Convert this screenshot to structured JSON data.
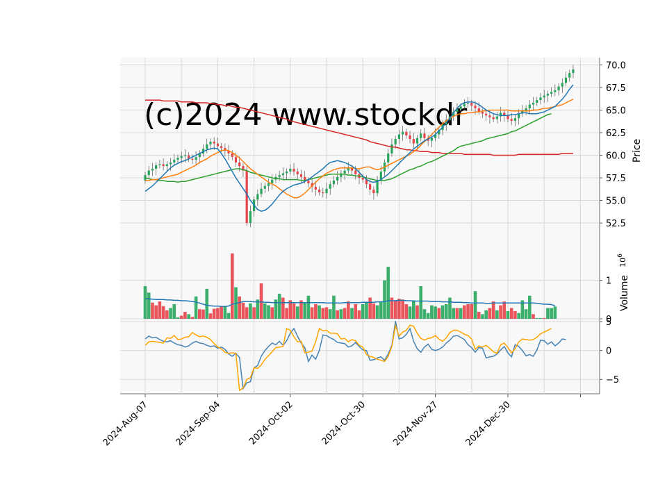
{
  "chart_data": {
    "type": "candlestick",
    "watermark": "(c)2024 www.stockdr",
    "x_tick_labels": [
      "2024-Aug-07",
      "2024-Sep-04",
      "2024-Oct-02",
      "2024-Oct-30",
      "2024-Nov-27",
      "2024-Dec-30"
    ],
    "x_tick_index": [
      0,
      20,
      40,
      60,
      80,
      100
    ],
    "price_panel": {
      "ylabel": "Price",
      "ylim": [
        50.2,
        70.8
      ],
      "yticks": [
        "52.5",
        "55.0",
        "57.5",
        "60.0",
        "62.5",
        "65.0",
        "67.5",
        "70.0"
      ],
      "ytick_values": [
        52.5,
        55.0,
        57.5,
        60.0,
        62.5,
        65.0,
        67.5,
        70.0
      ],
      "closes": [
        57.8,
        58.3,
        58.5,
        58.9,
        59.0,
        58.8,
        59.0,
        59.2,
        59.5,
        59.7,
        59.9,
        60.0,
        59.6,
        59.5,
        59.8,
        60.2,
        60.7,
        61.2,
        61.5,
        61.3,
        61.0,
        60.8,
        60.5,
        60.2,
        59.8,
        59.2,
        58.8,
        58.3,
        52.5,
        53.8,
        55.1,
        55.7,
        56.3,
        56.6,
        56.9,
        57.3,
        57.6,
        57.8,
        58.0,
        58.2,
        58.5,
        58.2,
        57.9,
        57.6,
        57.2,
        56.9,
        56.5,
        56.2,
        55.9,
        55.8,
        56.3,
        56.8,
        57.2,
        57.6,
        58.0,
        58.3,
        58.6,
        58.3,
        57.9,
        57.5,
        57.3,
        56.8,
        56.2,
        55.8,
        57.2,
        58.2,
        59.2,
        60.2,
        61.2,
        61.8,
        62.3,
        62.6,
        62.2,
        61.8,
        61.3,
        61.9,
        62.4,
        61.9,
        61.6,
        61.9,
        62.3,
        62.8,
        63.4,
        63.9,
        64.3,
        64.8,
        65.1,
        65.4,
        65.7,
        65.8,
        65.5,
        65.2,
        64.8,
        64.6,
        64.4,
        64.2,
        64.0,
        64.3,
        64.7,
        64.4,
        64.0,
        63.8,
        64.1,
        64.6,
        64.9,
        65.2,
        65.6,
        65.8,
        66.1,
        66.4,
        66.6,
        66.8,
        67.0,
        67.2,
        67.6,
        68.0,
        68.6,
        69.1,
        69.5
      ],
      "sma_20": [
        56.0,
        56.3,
        56.6,
        57.0,
        57.4,
        57.8,
        58.2,
        58.6,
        58.9,
        59.1,
        59.3,
        59.4,
        59.6,
        59.8,
        60.0,
        60.2,
        60.4,
        60.6,
        60.7,
        60.8,
        60.7,
        60.2,
        59.6,
        58.9,
        58.2,
        57.5,
        56.9,
        56.3,
        55.7,
        55.0,
        54.5,
        54.0,
        53.8,
        53.9,
        54.2,
        54.6,
        55.1,
        55.6,
        56.0,
        56.3,
        56.5,
        56.7,
        56.8,
        56.9,
        57.1,
        57.3,
        57.6,
        57.9,
        58.2,
        58.5,
        58.9,
        59.2,
        59.3,
        59.4,
        59.3,
        59.2,
        59.0,
        58.8,
        58.5,
        58.1,
        57.7,
        57.3,
        57.1,
        57.0,
        57.1,
        57.3,
        57.6,
        57.9,
        58.3,
        58.7,
        59.1,
        59.5,
        59.9,
        60.3,
        60.7,
        61.0,
        61.3,
        61.6,
        61.8,
        62.0,
        62.3,
        62.7,
        63.1,
        63.6,
        64.1,
        64.7,
        65.2,
        65.6,
        65.8,
        65.9,
        65.9,
        65.8,
        65.6,
        65.3,
        65.0,
        64.8,
        64.6,
        64.5,
        64.4,
        64.4,
        64.4,
        64.5,
        64.5,
        64.6,
        64.7,
        64.7,
        64.6,
        64.6,
        64.6,
        64.7,
        64.8,
        65.0,
        65.2,
        65.4,
        65.8,
        66.2,
        66.7,
        67.3,
        67.8
      ],
      "sma_50": [
        57.2,
        57.2,
        57.3,
        57.3,
        57.4,
        57.5,
        57.6,
        57.7,
        57.8,
        57.9,
        58.1,
        58.3,
        58.5,
        58.7,
        58.9,
        59.2,
        59.4,
        59.6,
        59.9,
        60.1,
        60.3,
        60.5,
        60.6,
        60.5,
        60.3,
        60.0,
        59.7,
        59.3,
        58.9,
        58.5,
        58.2,
        57.9,
        57.6,
        57.3,
        57.0,
        56.8,
        56.6,
        56.3,
        56.0,
        55.7,
        55.5,
        55.3,
        55.3,
        55.5,
        55.8,
        56.2,
        56.6,
        57.0,
        57.4,
        57.7,
        58.0,
        58.2,
        58.4,
        58.5,
        58.6,
        58.6,
        58.6,
        58.6,
        58.5,
        58.5,
        58.6,
        58.7,
        58.7,
        58.5,
        58.4,
        58.5,
        58.7,
        58.9,
        59.1,
        59.3,
        59.5,
        59.7,
        59.9,
        60.1,
        60.4,
        60.7,
        61.1,
        61.5,
        61.9,
        62.3,
        62.7,
        63.1,
        63.5,
        63.8,
        64.1,
        64.3,
        64.5,
        64.6,
        64.6,
        64.7,
        64.7,
        64.8,
        64.8,
        64.9,
        64.9,
        65.0,
        65.0,
        65.0,
        65.0,
        65.0,
        65.0,
        64.9,
        64.9,
        64.9,
        64.9,
        64.9,
        64.9,
        65.0,
        65.0,
        65.1,
        65.2,
        65.2,
        65.3,
        65.4,
        65.5,
        65.6,
        65.8,
        66.0,
        66.2
      ],
      "sma_100": [
        57.5,
        57.4,
        57.3,
        57.3,
        57.2,
        57.2,
        57.1,
        57.1,
        57.1,
        57.0,
        57.1,
        57.1,
        57.2,
        57.3,
        57.4,
        57.5,
        57.6,
        57.7,
        57.8,
        57.9,
        58.0,
        58.1,
        58.2,
        58.3,
        58.4,
        58.5,
        58.5,
        58.4,
        58.3,
        58.1,
        58.0,
        57.9,
        57.8,
        57.7,
        57.6,
        57.5,
        57.4,
        57.4,
        57.3,
        57.3,
        57.3,
        57.3,
        57.3,
        57.2,
        57.2,
        57.3,
        57.4,
        57.5,
        57.6,
        57.7,
        57.8,
        57.9,
        57.9,
        57.9,
        57.9,
        57.9,
        57.8,
        57.8,
        57.7,
        57.7,
        57.6,
        57.5,
        57.4,
        57.3,
        57.2,
        57.2,
        57.2,
        57.3,
        57.4,
        57.6,
        57.8,
        58.0,
        58.2,
        58.4,
        58.5,
        58.7,
        58.8,
        59.0,
        59.2,
        59.3,
        59.5,
        59.7,
        59.9,
        60.1,
        60.3,
        60.5,
        60.8,
        61.0,
        61.1,
        61.2,
        61.3,
        61.4,
        61.5,
        61.6,
        61.8,
        61.9,
        62.0,
        62.1,
        62.2,
        62.3,
        62.4,
        62.6,
        62.7,
        62.9,
        63.1,
        63.3,
        63.5,
        63.7,
        63.9,
        64.1,
        64.3,
        64.5,
        64.6
      ],
      "sma_200": [
        66.1,
        66.1,
        66.1,
        66.1,
        66.1,
        66.0,
        66.0,
        66.0,
        66.0,
        66.0,
        65.9,
        65.9,
        65.9,
        65.9,
        65.8,
        65.8,
        65.8,
        65.8,
        65.7,
        65.7,
        65.6,
        65.6,
        65.5,
        65.5,
        65.4,
        65.3,
        65.3,
        65.2,
        65.1,
        65.0,
        64.9,
        64.8,
        64.7,
        64.6,
        64.5,
        64.4,
        64.3,
        64.2,
        64.1,
        64.0,
        63.8,
        63.7,
        63.6,
        63.5,
        63.4,
        63.3,
        63.2,
        63.1,
        63.0,
        62.9,
        62.8,
        62.7,
        62.6,
        62.5,
        62.4,
        62.3,
        62.2,
        62.1,
        62.0,
        61.9,
        61.8,
        61.7,
        61.5,
        61.4,
        61.3,
        61.2,
        61.1,
        61.0,
        60.9,
        60.9,
        60.8,
        60.7,
        60.6,
        60.6,
        60.5,
        60.5,
        60.4,
        60.4,
        60.4,
        60.3,
        60.3,
        60.3,
        60.2,
        60.2,
        60.2,
        60.2,
        60.2,
        60.2,
        60.1,
        60.1,
        60.1,
        60.1,
        60.1,
        60.1,
        60.1,
        60.1,
        60.0,
        60.0,
        60.0,
        60.0,
        60.0,
        60.0,
        60.0,
        60.1,
        60.1,
        60.1,
        60.1,
        60.1,
        60.1,
        60.1,
        60.1,
        60.1,
        60.1,
        60.1,
        60.1,
        60.2,
        60.2,
        60.2,
        60.2
      ]
    },
    "volume_panel": {
      "ylabel": "Volume  10^6",
      "ylabel_text": "Volume",
      "ylabel_exponent": "6",
      "ylim": [
        0,
        1.95
      ],
      "yticks": [
        "0",
        "1"
      ],
      "ytick_values": [
        0,
        1
      ],
      "values": [
        0.85,
        0.68,
        0.42,
        0.35,
        0.45,
        0.33,
        0.22,
        0.28,
        0.38,
        0.04,
        0.08,
        0.18,
        0.12,
        0.05,
        0.58,
        0.25,
        0.24,
        0.78,
        0.14,
        0.26,
        0.28,
        0.32,
        0.33,
        0.15,
        1.7,
        0.82,
        0.58,
        0.42,
        0.3,
        0.4,
        0.3,
        0.5,
        0.92,
        0.4,
        0.35,
        0.3,
        0.5,
        0.65,
        0.55,
        0.28,
        0.48,
        0.4,
        0.32,
        0.48,
        0.42,
        0.6,
        0.3,
        0.38,
        0.35,
        0.28,
        0.3,
        0.25,
        0.6,
        0.22,
        0.25,
        0.28,
        0.45,
        0.28,
        0.38,
        0.22,
        0.38,
        0.42,
        0.55,
        0.4,
        0.35,
        0.45,
        1.0,
        1.35,
        0.55,
        0.48,
        0.52,
        0.5,
        0.38,
        0.32,
        0.48,
        0.35,
        0.85,
        0.25,
        0.15,
        0.35,
        0.32,
        0.28,
        0.35,
        0.38,
        0.55,
        0.28,
        0.28,
        0.28,
        0.35,
        0.38,
        0.38,
        0.72,
        0.18,
        0.12,
        0.22,
        0.28,
        0.45,
        0.22,
        0.35,
        0.45,
        0.2,
        0.28,
        0.2,
        0.15,
        0.48,
        0.25,
        0.6,
        0.12,
        0.02,
        0.02,
        0.02,
        0.28,
        0.28,
        0.32
      ],
      "up_flags": [
        1,
        1,
        0,
        0,
        0,
        0,
        0,
        1,
        1,
        1,
        0,
        0,
        1,
        0,
        1,
        0,
        0,
        1,
        0,
        0,
        0,
        0,
        1,
        1,
        0,
        1,
        0,
        0,
        0,
        1,
        0,
        1,
        0,
        1,
        1,
        0,
        1,
        1,
        0,
        0,
        0,
        0,
        1,
        0,
        1,
        1,
        0,
        0,
        1,
        0,
        0,
        1,
        1,
        0,
        1,
        0,
        0,
        1,
        0,
        0,
        1,
        1,
        0,
        0,
        1,
        1,
        1,
        1,
        0,
        0,
        0,
        0,
        0,
        1,
        1,
        0,
        1,
        1,
        1,
        1,
        1,
        0,
        1,
        1,
        1,
        1,
        0,
        1,
        0,
        0,
        0,
        1,
        0,
        1,
        1,
        0,
        0,
        1,
        0,
        0,
        1,
        0,
        0,
        1,
        1,
        1,
        1,
        0,
        1,
        1,
        0,
        1,
        1,
        1
      ],
      "avg": [
        0.52,
        0.52,
        0.51,
        0.5,
        0.5,
        0.5,
        0.49,
        0.49,
        0.48,
        0.48,
        0.47,
        0.47,
        0.46,
        0.45,
        0.43,
        0.41,
        0.38,
        0.35,
        0.34,
        0.33,
        0.33,
        0.32,
        0.32,
        0.33,
        0.38,
        0.4,
        0.42,
        0.45,
        0.45,
        0.45,
        0.44,
        0.44,
        0.44,
        0.43,
        0.43,
        0.42,
        0.42,
        0.42,
        0.42,
        0.42,
        0.42,
        0.42,
        0.42,
        0.42,
        0.42,
        0.42,
        0.42,
        0.42,
        0.42,
        0.42,
        0.41,
        0.41,
        0.41,
        0.41,
        0.41,
        0.42,
        0.42,
        0.42,
        0.42,
        0.42,
        0.43,
        0.43,
        0.43,
        0.43,
        0.44,
        0.44,
        0.45,
        0.47,
        0.47,
        0.47,
        0.48,
        0.48,
        0.47,
        0.47,
        0.46,
        0.46,
        0.46,
        0.46,
        0.46,
        0.45,
        0.45,
        0.45,
        0.44,
        0.44,
        0.44,
        0.43,
        0.43,
        0.43,
        0.42,
        0.42,
        0.41,
        0.41,
        0.41,
        0.41,
        0.4,
        0.4,
        0.41,
        0.41,
        0.41,
        0.41,
        0.41,
        0.41,
        0.41,
        0.41,
        0.41,
        0.41,
        0.41,
        0.41,
        0.4,
        0.39,
        0.38,
        0.38,
        0.37,
        0.34
      ],
      "colors": {
        "up": "#26a65b",
        "down": "#e8424a",
        "avg": "#1f77b4"
      }
    },
    "indicator_panel": {
      "ylim": [
        -7.5,
        5.5
      ],
      "yticks": [
        "−5",
        "0",
        "5"
      ],
      "ytick_values": [
        -5,
        0,
        5
      ],
      "series": [
        {
          "color": "#4682b4",
          "values": [
            2.0,
            2.5,
            2.2,
            2.3,
            1.9,
            1.6,
            1.5,
            1.7,
            1.3,
            1.0,
            0.9,
            0.6,
            0.8,
            1.3,
            1.6,
            1.3,
            1.2,
            0.9,
            0.7,
            0.8,
            0.4,
            0.6,
            0.2,
            -0.6,
            -1.0,
            -0.5,
            -1.2,
            -6.6,
            -5.6,
            -5.4,
            -3.0,
            -2.6,
            -1.0,
            0.0,
            0.7,
            1.3,
            1.0,
            1.6,
            0.9,
            1.7,
            3.0,
            3.8,
            2.5,
            1.3,
            0.5,
            -1.9,
            -0.8,
            -1.5,
            0.0,
            2.7,
            2.6,
            2.2,
            1.9,
            1.4,
            1.3,
            1.2,
            0.6,
            0.8,
            1.4,
            0.7,
            0.1,
            0.0,
            -1.7,
            -1.6,
            -1.3,
            -1.1,
            -1.7,
            -0.6,
            0.9,
            5.1,
            2.0,
            2.2,
            2.8,
            3.8,
            1.6,
            0.3,
            -0.3,
            0.6,
            1.1,
            0.2,
            0.0,
            0.2,
            0.6,
            1.3,
            1.8,
            2.5,
            2.6,
            2.3,
            1.9,
            1.0,
            0.5,
            -0.3,
            0.5,
            0.4,
            -1.3,
            -1.1,
            -1.0,
            -0.6,
            0.1,
            0.7,
            -0.4,
            -1.1,
            1.0,
            0.7,
            0.0,
            -0.9,
            -0.7,
            -1.0,
            0.1,
            1.8,
            1.7,
            1.1,
            1.5,
            0.8,
            1.3,
            2.0,
            1.9
          ]
        },
        {
          "color": "#ffa500",
          "values": [
            0.9,
            1.5,
            1.6,
            1.5,
            1.4,
            1.3,
            2.2,
            2.1,
            2.6,
            1.9,
            2.0,
            2.3,
            2.4,
            3.1,
            2.7,
            2.4,
            2.5,
            2.3,
            1.9,
            1.2,
            0.6,
            0.3,
            -0.3,
            -0.5,
            -0.4,
            -0.5,
            -6.9,
            -6.5,
            -5.0,
            -4.7,
            -3.0,
            -3.1,
            -2.5,
            -1.5,
            -0.9,
            -0.2,
            0.5,
            0.6,
            0.7,
            3.8,
            3.5,
            2.4,
            1.5,
            1.6,
            -0.4,
            -0.3,
            -0.1,
            1.5,
            3.8,
            3.4,
            3.5,
            3.0,
            3.0,
            2.9,
            2.0,
            2.1,
            1.5,
            1.9,
            1.7,
            0.9,
            0.6,
            -0.7,
            -1.0,
            -1.2,
            -1.5,
            -1.7,
            -1.9,
            -1.0,
            0.7,
            4.3,
            2.5,
            3.2,
            3.5,
            4.4,
            4.2,
            3.0,
            2.1,
            1.8,
            2.1,
            2.2,
            2.6,
            2.0,
            1.6,
            2.2,
            3.1,
            3.5,
            3.5,
            3.2,
            2.8,
            2.6,
            2.0,
            0.2,
            0.8,
            0.6,
            0.9,
            0.4,
            -0.2,
            -0.5,
            1.0,
            1.3,
            0.5,
            -0.4,
            0.3,
            1.5,
            2.0,
            1.9,
            1.8,
            1.9,
            2.3,
            2.9,
            3.2,
            3.5,
            3.8
          ]
        }
      ]
    },
    "ma_colors": {
      "sma_20": "#1f77b4",
      "sma_50": "#ff7f0e",
      "sma_100": "#2ca02c",
      "sma_200": "#d62728"
    }
  }
}
